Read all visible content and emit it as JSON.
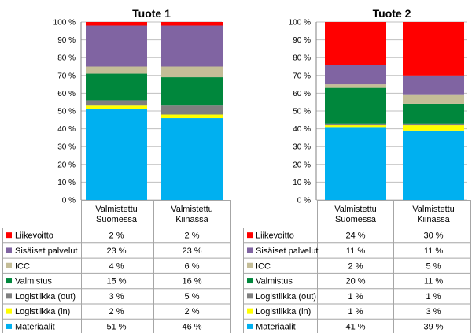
{
  "colors": {
    "Liikevoitto": "#ff0000",
    "Sisäiset palvelut": "#8064a2",
    "ICC": "#c4bd97",
    "Valmistus": "#00873c",
    "Logistiikka (out)": "#7f7f7f",
    "Logistiikka (in)": "#ffff00",
    "Materiaalit": "#00b0f0",
    "grid": "#bfbfbf",
    "border": "#a6a6a6"
  },
  "chart_data": [
    {
      "type": "bar",
      "stacked": true,
      "title": "Tuote 1",
      "categories": [
        "Valmistettu\nSuomessa",
        "Valmistettu\nKiinassa"
      ],
      "ylim": [
        0,
        100
      ],
      "yticks": [
        "0 %",
        "10 %",
        "20 %",
        "30 %",
        "40 %",
        "50 %",
        "60 %",
        "70 %",
        "80 %",
        "90 %",
        "100 %"
      ],
      "grid": true,
      "legend": "table-below",
      "series": [
        {
          "name": "Liikevoitto",
          "values": [
            2,
            2
          ],
          "labels": [
            "2 %",
            "2 %"
          ]
        },
        {
          "name": "Sisäiset palvelut",
          "values": [
            23,
            23
          ],
          "labels": [
            "23 %",
            "23 %"
          ]
        },
        {
          "name": "ICC",
          "values": [
            4,
            6
          ],
          "labels": [
            "4 %",
            "6 %"
          ]
        },
        {
          "name": "Valmistus",
          "values": [
            15,
            16
          ],
          "labels": [
            "15 %",
            "16 %"
          ]
        },
        {
          "name": "Logistiikka (out)",
          "values": [
            3,
            5
          ],
          "labels": [
            "3 %",
            "5 %"
          ]
        },
        {
          "name": "Logistiikka (in)",
          "values": [
            2,
            2
          ],
          "labels": [
            "2 %",
            "2 %"
          ]
        },
        {
          "name": "Materiaalit",
          "values": [
            51,
            46
          ],
          "labels": [
            "51 %",
            "46 %"
          ]
        }
      ]
    },
    {
      "type": "bar",
      "stacked": true,
      "title": "Tuote 2",
      "categories": [
        "Valmistettu\nSuomessa",
        "Valmistettu\nKiinassa"
      ],
      "ylim": [
        0,
        100
      ],
      "yticks": [
        "0 %",
        "10 %",
        "20 %",
        "30 %",
        "40 %",
        "50 %",
        "60 %",
        "70 %",
        "80 %",
        "90 %",
        "100 %"
      ],
      "grid": true,
      "legend": "table-below",
      "series": [
        {
          "name": "Liikevoitto",
          "values": [
            24,
            30
          ],
          "labels": [
            "24 %",
            "30 %"
          ]
        },
        {
          "name": "Sisäiset palvelut",
          "values": [
            11,
            11
          ],
          "labels": [
            "11 %",
            "11 %"
          ]
        },
        {
          "name": "ICC",
          "values": [
            2,
            5
          ],
          "labels": [
            "2 %",
            "5 %"
          ]
        },
        {
          "name": "Valmistus",
          "values": [
            20,
            11
          ],
          "labels": [
            "20 %",
            "11 %"
          ]
        },
        {
          "name": "Logistiikka (out)",
          "values": [
            1,
            1
          ],
          "labels": [
            "1 %",
            "1 %"
          ]
        },
        {
          "name": "Logistiikka (in)",
          "values": [
            1,
            3
          ],
          "labels": [
            "1 %",
            "3 %"
          ]
        },
        {
          "name": "Materiaalit",
          "values": [
            41,
            39
          ],
          "labels": [
            "41 %",
            "39 %"
          ]
        }
      ]
    }
  ]
}
